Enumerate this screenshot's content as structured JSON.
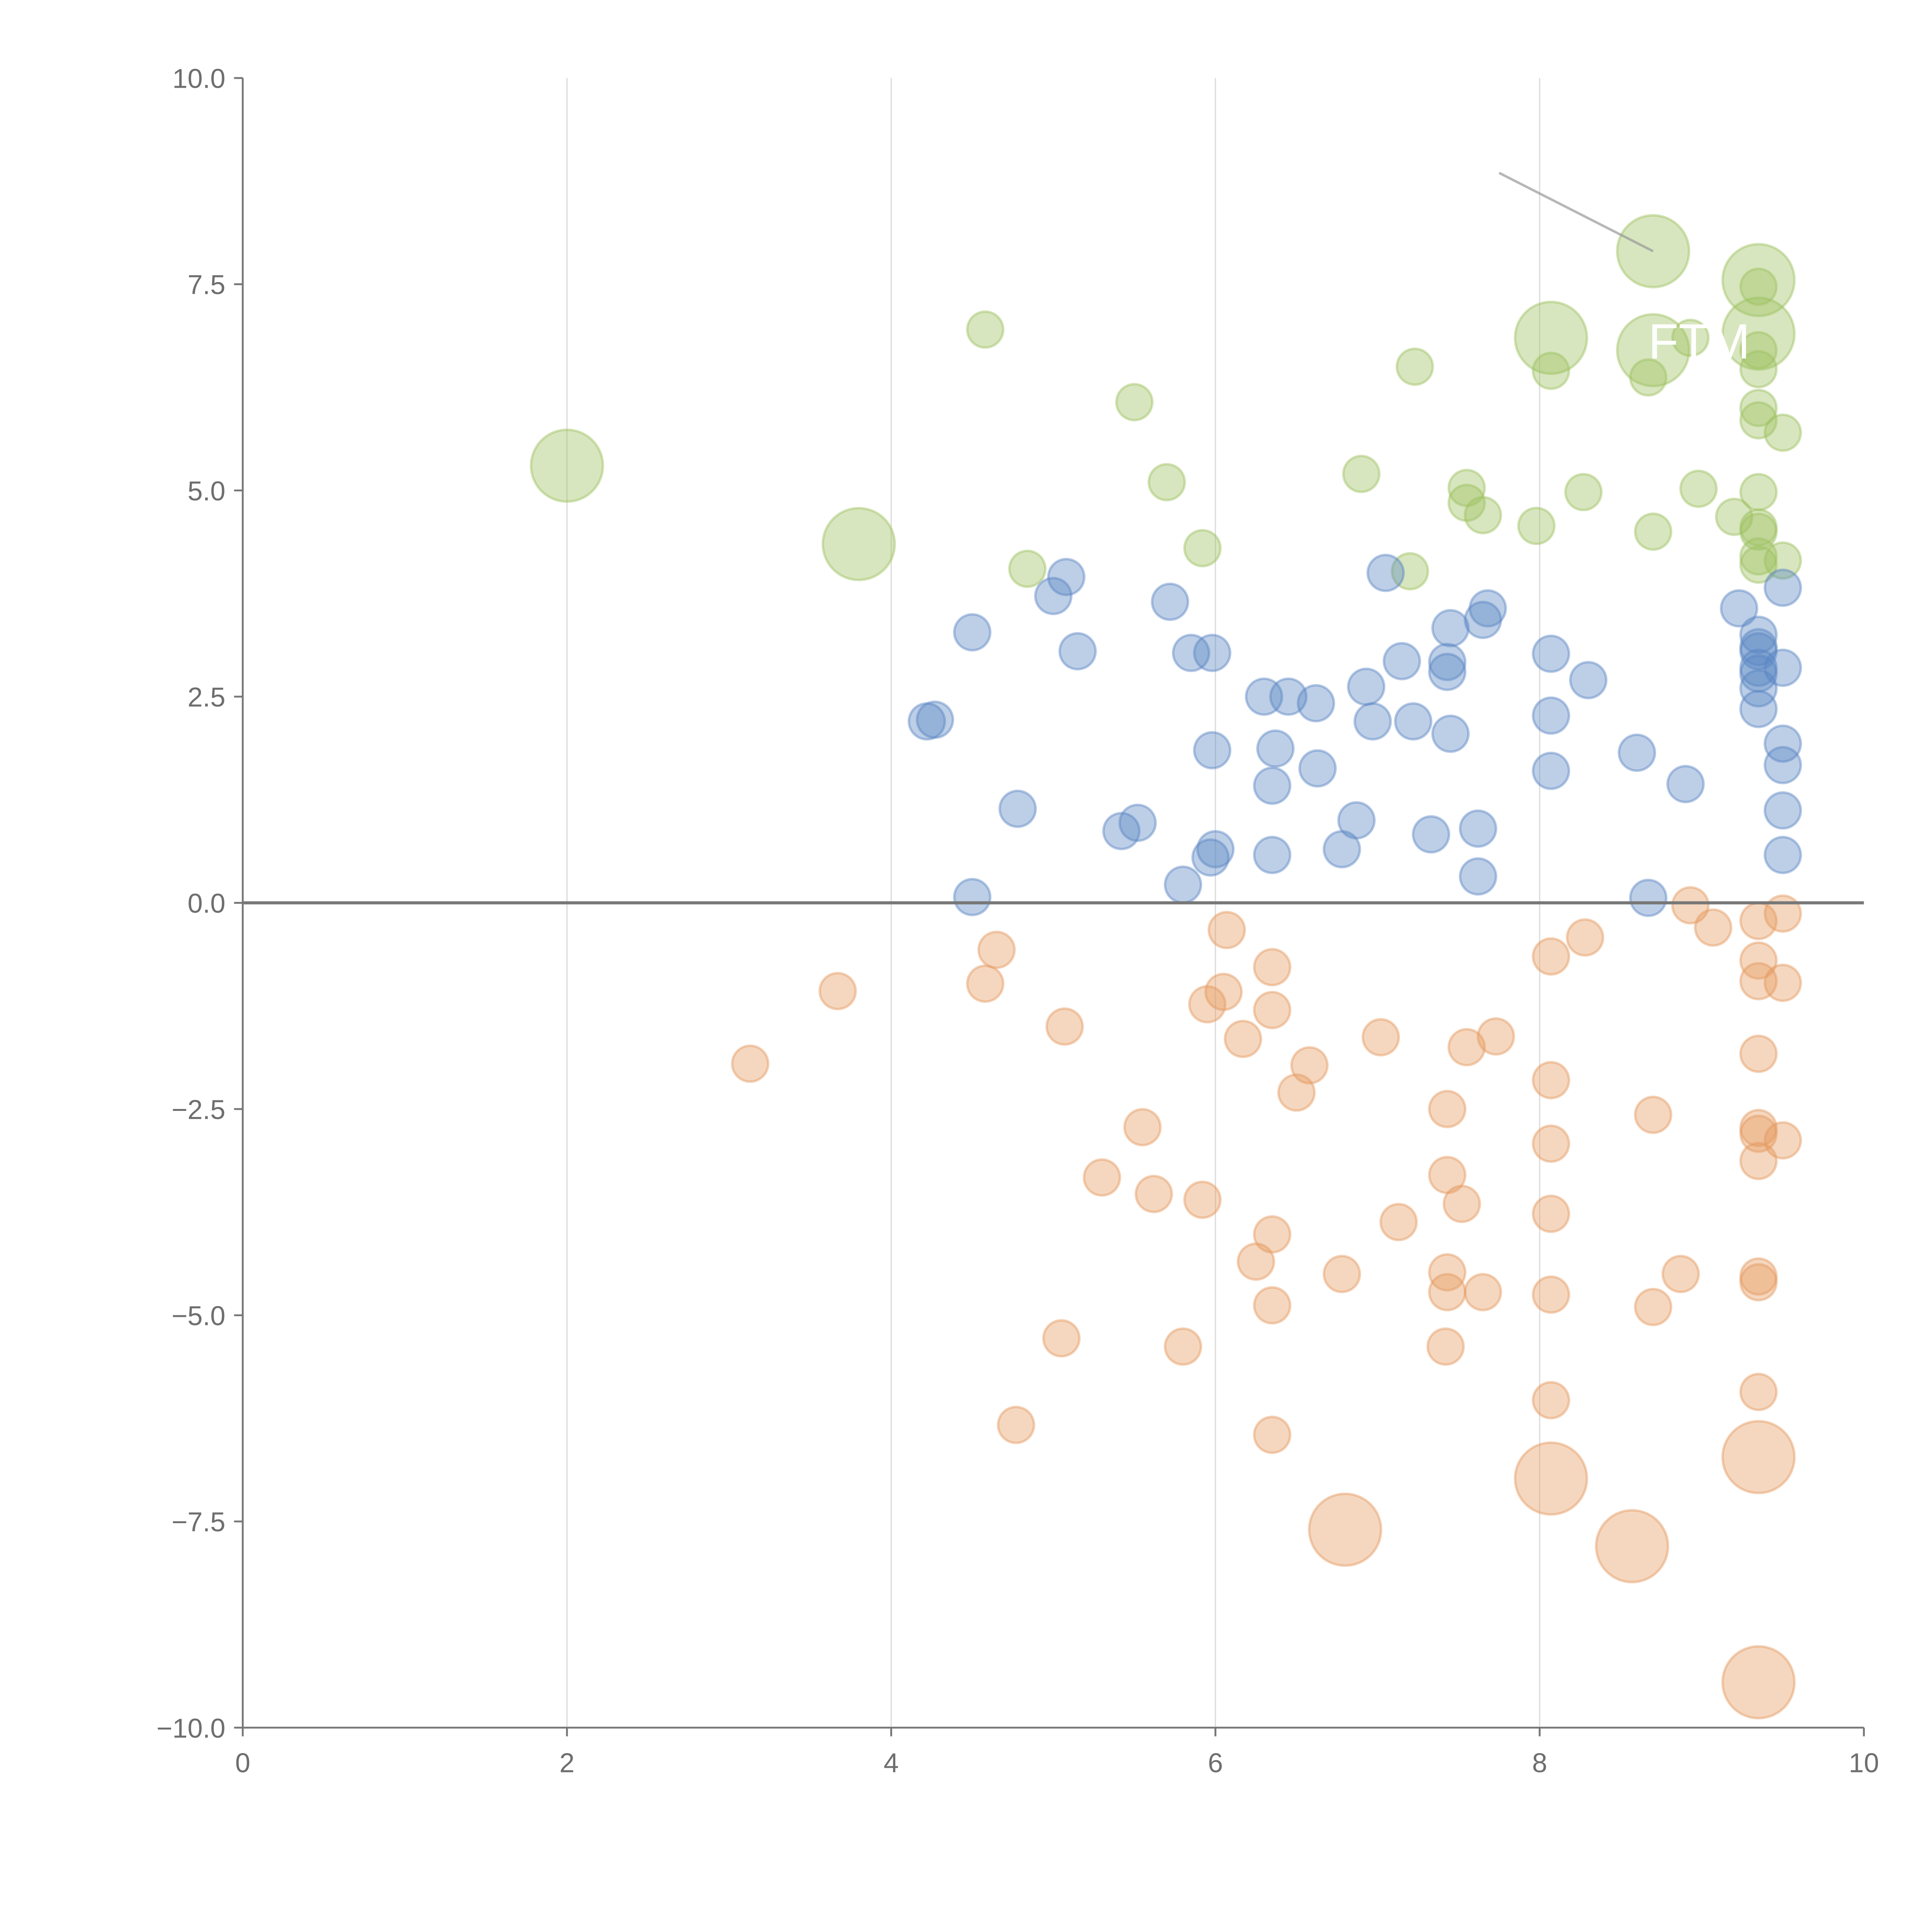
{
  "chart_data": {
    "type": "scatter",
    "title": "",
    "xlabel": "",
    "ylabel": "",
    "xlim": [
      0,
      10
    ],
    "ylim": [
      -10,
      10
    ],
    "x_ticks": [
      0,
      2,
      4,
      6,
      8,
      10
    ],
    "x_tick_labels": [
      "0",
      "2",
      "4",
      "6",
      "8",
      "10"
    ],
    "y_ticks": [
      -10,
      -7.5,
      -5,
      -2.5,
      0,
      2.5,
      5,
      7.5,
      10
    ],
    "y_tick_labels": [
      "−10.0",
      "−7.5",
      "−5.0",
      "−2.5",
      "0.0",
      "2.5",
      "5.0",
      "7.5",
      "10.0"
    ],
    "grid": "vertical",
    "zero_line": true,
    "colors": {
      "green": "#9dc05f",
      "blue": "#5b86c3",
      "orange": "#e59a5f"
    },
    "series": [
      {
        "name": "green",
        "color": "#9dc05f",
        "points": [
          [
            2.0,
            5.3,
            4
          ],
          [
            3.8,
            4.35,
            4
          ],
          [
            8.7,
            7.9,
            4
          ],
          [
            9.35,
            7.55,
            4
          ],
          [
            8.07,
            6.85,
            4
          ],
          [
            8.7,
            6.7,
            4
          ],
          [
            9.35,
            6.9,
            4
          ],
          [
            4.58,
            6.95,
            1
          ],
          [
            5.5,
            6.07,
            1
          ],
          [
            5.7,
            5.1,
            1
          ],
          [
            5.92,
            4.3,
            1
          ],
          [
            4.84,
            4.05,
            1
          ],
          [
            7.23,
            6.5,
            1
          ],
          [
            6.9,
            5.2,
            1
          ],
          [
            7.2,
            4.02,
            1
          ],
          [
            7.55,
            5.03,
            1
          ],
          [
            7.55,
            4.85,
            1
          ],
          [
            7.65,
            4.7,
            1
          ],
          [
            7.98,
            4.57,
            1
          ],
          [
            8.07,
            6.45,
            1
          ],
          [
            8.27,
            4.98,
            1
          ],
          [
            8.7,
            4.5,
            1
          ],
          [
            8.67,
            6.37,
            1
          ],
          [
            8.93,
            6.85,
            1
          ],
          [
            8.98,
            5.02,
            1
          ],
          [
            9.2,
            4.68,
            1
          ],
          [
            9.35,
            7.47,
            1
          ],
          [
            9.35,
            6.47,
            1
          ],
          [
            9.35,
            6.0,
            1
          ],
          [
            9.35,
            5.85,
            1
          ],
          [
            9.5,
            5.7,
            1
          ],
          [
            9.35,
            4.98,
            1
          ],
          [
            9.35,
            4.55,
            1
          ],
          [
            9.35,
            4.5,
            1
          ],
          [
            9.35,
            4.2,
            1
          ],
          [
            9.35,
            4.1,
            1
          ],
          [
            9.5,
            4.15,
            1
          ],
          [
            9.35,
            6.7,
            1
          ]
        ]
      },
      {
        "name": "blue",
        "color": "#5b86c3",
        "points": [
          [
            4.22,
            2.2,
            1
          ],
          [
            4.27,
            2.22,
            1
          ],
          [
            4.5,
            3.28,
            1
          ],
          [
            4.5,
            0.07,
            1
          ],
          [
            4.78,
            1.14,
            1
          ],
          [
            5.0,
            3.72,
            1
          ],
          [
            5.08,
            3.95,
            1
          ],
          [
            5.15,
            3.05,
            1
          ],
          [
            5.42,
            0.87,
            1
          ],
          [
            5.52,
            0.97,
            1
          ],
          [
            5.72,
            3.65,
            1
          ],
          [
            5.8,
            0.22,
            1
          ],
          [
            5.85,
            3.03,
            1
          ],
          [
            5.97,
            0.55,
            1
          ],
          [
            5.98,
            1.85,
            1
          ],
          [
            5.98,
            3.03,
            1
          ],
          [
            6.0,
            0.65,
            1
          ],
          [
            6.3,
            2.5,
            1
          ],
          [
            6.35,
            1.42,
            1
          ],
          [
            6.37,
            1.87,
            1
          ],
          [
            6.35,
            0.58,
            1
          ],
          [
            6.45,
            2.5,
            1
          ],
          [
            6.62,
            2.42,
            1
          ],
          [
            6.63,
            1.63,
            1
          ],
          [
            6.78,
            0.65,
            1
          ],
          [
            6.87,
            1.0,
            1
          ],
          [
            6.93,
            2.62,
            1
          ],
          [
            6.97,
            2.2,
            1
          ],
          [
            7.05,
            4.0,
            1
          ],
          [
            7.15,
            2.93,
            1
          ],
          [
            7.22,
            2.2,
            1
          ],
          [
            7.33,
            0.83,
            1
          ],
          [
            7.43,
            2.8,
            1
          ],
          [
            7.43,
            2.92,
            1
          ],
          [
            7.45,
            3.33,
            1
          ],
          [
            7.45,
            2.05,
            1
          ],
          [
            7.62,
            0.9,
            1
          ],
          [
            7.62,
            0.32,
            1
          ],
          [
            7.65,
            3.43,
            1
          ],
          [
            7.68,
            3.57,
            1
          ],
          [
            8.07,
            3.02,
            1
          ],
          [
            8.07,
            2.27,
            1
          ],
          [
            8.07,
            1.6,
            1
          ],
          [
            8.3,
            2.7,
            1
          ],
          [
            8.6,
            1.82,
            1
          ],
          [
            8.67,
            0.06,
            1
          ],
          [
            8.9,
            1.44,
            1
          ],
          [
            9.23,
            3.57,
            1
          ],
          [
            9.35,
            3.25,
            1
          ],
          [
            9.35,
            3.1,
            1
          ],
          [
            9.35,
            3.05,
            1
          ],
          [
            9.35,
            2.85,
            1
          ],
          [
            9.35,
            2.78,
            1
          ],
          [
            9.35,
            2.6,
            1
          ],
          [
            9.35,
            2.35,
            1
          ],
          [
            9.5,
            2.85,
            1
          ],
          [
            9.5,
            3.82,
            1
          ],
          [
            9.5,
            1.93,
            1
          ],
          [
            9.5,
            1.67,
            1
          ],
          [
            9.5,
            1.12,
            1
          ],
          [
            9.5,
            0.58,
            1
          ]
        ]
      },
      {
        "name": "orange",
        "color": "#e59a5f",
        "points": [
          [
            3.13,
            -1.95,
            1
          ],
          [
            3.67,
            -1.07,
            1
          ],
          [
            4.58,
            -0.98,
            1
          ],
          [
            4.65,
            -0.57,
            1
          ],
          [
            4.77,
            -6.33,
            1
          ],
          [
            5.05,
            -5.28,
            1
          ],
          [
            5.07,
            -1.5,
            1
          ],
          [
            5.3,
            -3.33,
            1
          ],
          [
            5.55,
            -2.72,
            1
          ],
          [
            5.62,
            -3.53,
            1
          ],
          [
            5.8,
            -5.38,
            1
          ],
          [
            5.92,
            -3.6,
            1
          ],
          [
            5.95,
            -1.23,
            1
          ],
          [
            6.07,
            -0.33,
            1
          ],
          [
            6.05,
            -1.08,
            1
          ],
          [
            6.17,
            -1.65,
            1
          ],
          [
            6.25,
            -4.35,
            1
          ],
          [
            6.35,
            -0.78,
            1
          ],
          [
            6.35,
            -1.3,
            1
          ],
          [
            6.35,
            -4.02,
            1
          ],
          [
            6.35,
            -4.88,
            1
          ],
          [
            6.35,
            -6.45,
            1
          ],
          [
            6.5,
            -2.3,
            1
          ],
          [
            6.58,
            -1.97,
            1
          ],
          [
            6.78,
            -4.5,
            1
          ],
          [
            6.8,
            -7.6,
            4
          ],
          [
            7.02,
            -1.63,
            1
          ],
          [
            7.13,
            -3.87,
            1
          ],
          [
            7.42,
            -5.38,
            1
          ],
          [
            7.43,
            -2.5,
            1
          ],
          [
            7.43,
            -3.3,
            1
          ],
          [
            7.43,
            -4.48,
            1
          ],
          [
            7.43,
            -4.72,
            1
          ],
          [
            7.52,
            -3.65,
            1
          ],
          [
            7.55,
            -1.75,
            1
          ],
          [
            7.65,
            -4.72,
            1
          ],
          [
            7.73,
            -1.62,
            1
          ],
          [
            8.07,
            -0.65,
            1
          ],
          [
            8.07,
            -2.15,
            1
          ],
          [
            8.07,
            -2.92,
            1
          ],
          [
            8.07,
            -3.77,
            1
          ],
          [
            8.07,
            -4.75,
            1
          ],
          [
            8.07,
            -6.03,
            1
          ],
          [
            8.07,
            -6.98,
            4
          ],
          [
            8.28,
            -0.42,
            1
          ],
          [
            8.57,
            -7.8,
            4
          ],
          [
            8.7,
            -2.57,
            1
          ],
          [
            8.7,
            -4.9,
            1
          ],
          [
            8.87,
            -4.5,
            1
          ],
          [
            8.93,
            -0.03,
            1
          ],
          [
            9.07,
            -0.3,
            1
          ],
          [
            9.35,
            -0.22,
            1
          ],
          [
            9.35,
            -0.7,
            1
          ],
          [
            9.35,
            -0.95,
            1
          ],
          [
            9.35,
            -1.83,
            1
          ],
          [
            9.35,
            -2.73,
            1
          ],
          [
            9.35,
            -2.8,
            1
          ],
          [
            9.35,
            -3.13,
            1
          ],
          [
            9.35,
            -4.53,
            1
          ],
          [
            9.35,
            -4.6,
            1
          ],
          [
            9.35,
            -5.93,
            1
          ],
          [
            9.35,
            -6.72,
            4
          ],
          [
            9.35,
            -9.45,
            4
          ],
          [
            9.5,
            -0.13,
            1
          ],
          [
            9.5,
            -0.97,
            1
          ],
          [
            9.5,
            -2.88,
            1
          ]
        ]
      }
    ],
    "annotations": [
      {
        "text": "FTM",
        "x": 8.67,
        "y": 6.6
      }
    ],
    "leader_lines": [
      {
        "from": [
          7.75,
          8.85
        ],
        "to": [
          8.7,
          7.9
        ]
      }
    ]
  }
}
